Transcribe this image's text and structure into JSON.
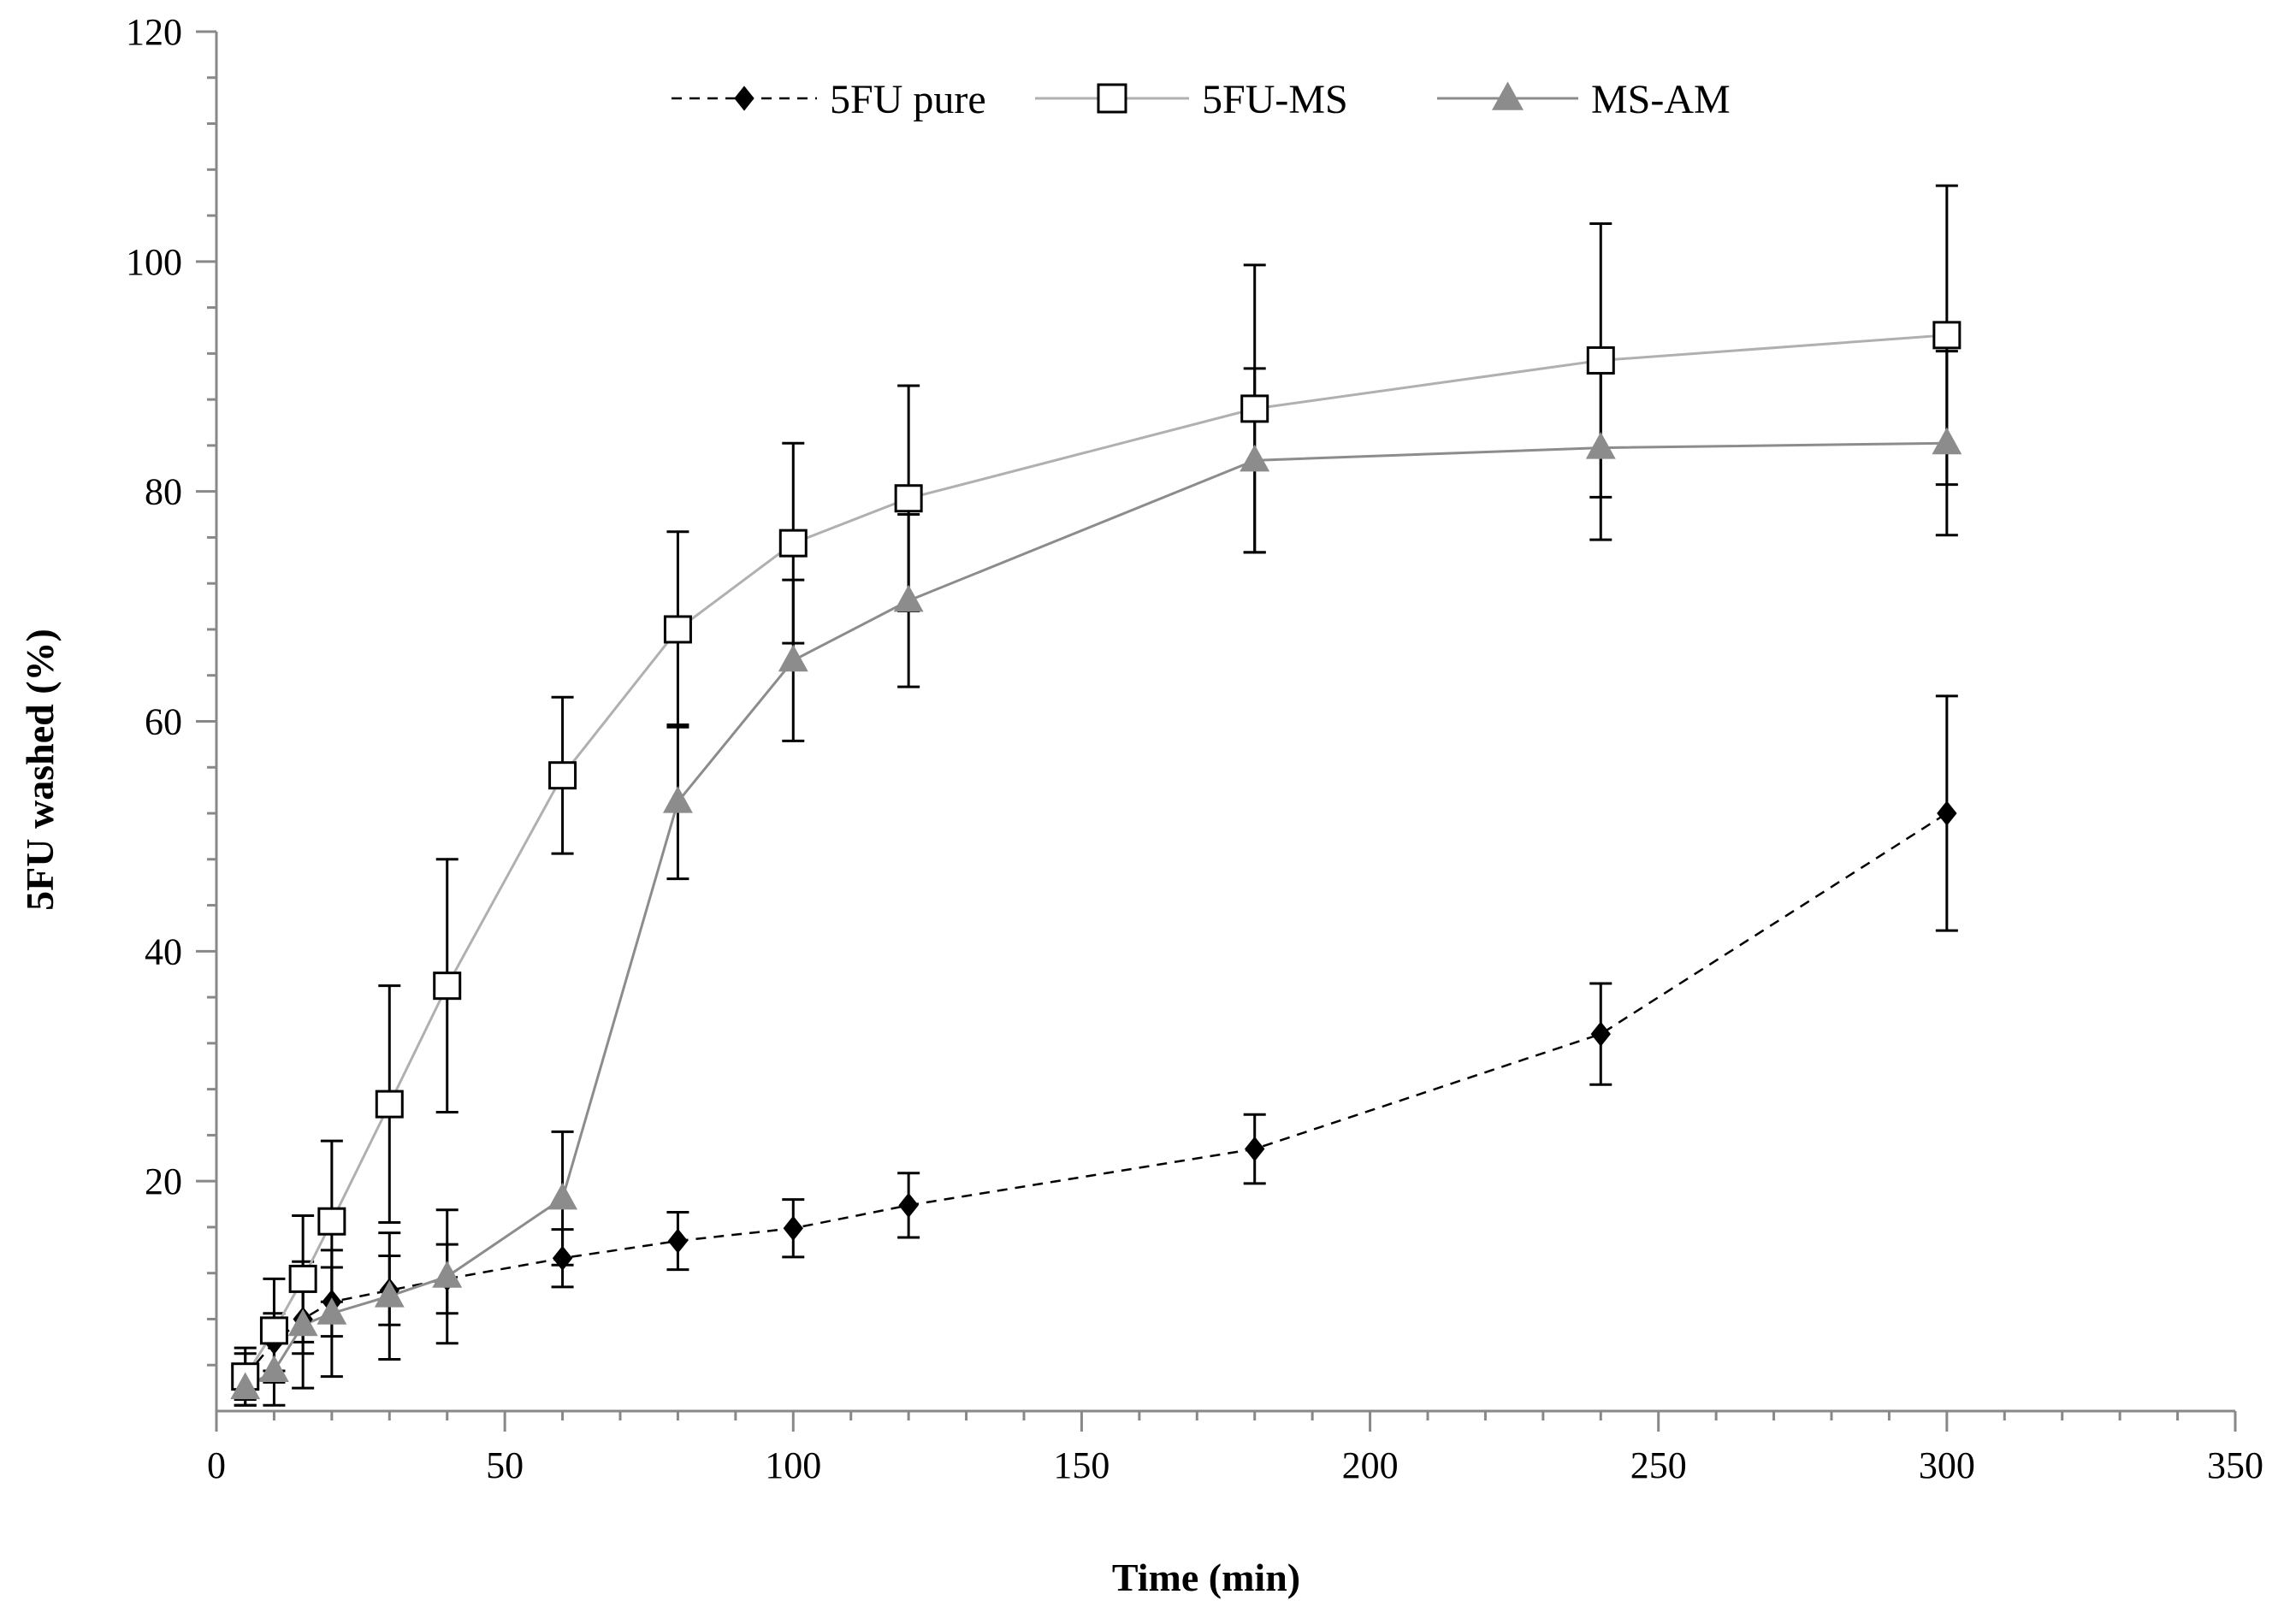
{
  "chart_data": {
    "type": "line",
    "title": "",
    "xlabel": "Time (min)",
    "ylabel": "5FU washed (%)",
    "xlim": [
      0,
      350
    ],
    "ylim": [
      0,
      120
    ],
    "xticks": [
      0,
      50,
      100,
      150,
      200,
      250,
      300,
      350
    ],
    "yticks": [
      20,
      40,
      60,
      80,
      100,
      120
    ],
    "x_minor_step": 10,
    "y_minor_step": 4,
    "grid": false,
    "legend_position": "top-center",
    "series": [
      {
        "name": "5FU pure",
        "marker": "diamond",
        "line_style": "dashed",
        "color": "#000000",
        "x": [
          5,
          10,
          15,
          20,
          30,
          40,
          60,
          80,
          100,
          120,
          180,
          240,
          300
        ],
        "y": [
          3,
          6,
          8,
          9.5,
          10.5,
          11.5,
          13.3,
          14.8,
          15.9,
          17.9,
          22.8,
          32.8,
          52
        ],
        "err": [
          2.5,
          2.5,
          3,
          3,
          3,
          3,
          2.5,
          2.5,
          2.5,
          2.8,
          3,
          4.4,
          10.2
        ]
      },
      {
        "name": "5FU-MS",
        "marker": "open-square",
        "line_style": "solid",
        "color": "#b0b0b0",
        "x": [
          5,
          10,
          15,
          20,
          30,
          40,
          60,
          80,
          100,
          120,
          180,
          240,
          300
        ],
        "y": [
          3,
          7,
          11.5,
          16.5,
          26.7,
          37,
          55.3,
          68,
          75.5,
          79.4,
          87.2,
          91.4,
          93.6
        ],
        "err": [
          2,
          4.5,
          5.5,
          7,
          10.3,
          11,
          6.8,
          8.5,
          8.7,
          9.8,
          12.5,
          11.9,
          13
        ]
      },
      {
        "name": "MS-AM",
        "marker": "triangle",
        "line_style": "solid",
        "color": "#8c8c8c",
        "x": [
          5,
          10,
          15,
          20,
          30,
          40,
          60,
          80,
          100,
          120,
          180,
          240,
          300
        ],
        "y": [
          2,
          3.5,
          7.5,
          8.5,
          10,
          11.7,
          18.5,
          53,
          65.3,
          70.5,
          82.7,
          83.8,
          84.2
        ],
        "err": [
          1.5,
          3,
          5.5,
          5.5,
          5.5,
          5.8,
          5.8,
          6.7,
          7,
          7.5,
          8,
          8,
          8
        ]
      }
    ]
  }
}
